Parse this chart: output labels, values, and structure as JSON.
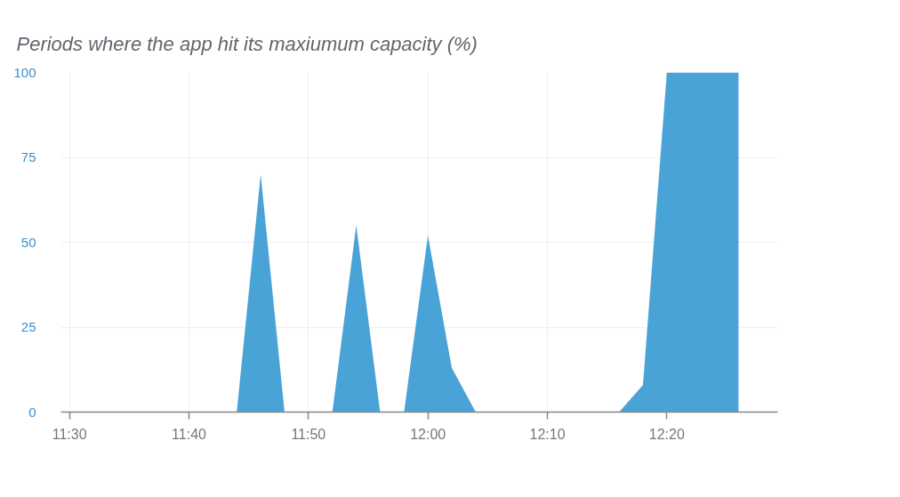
{
  "chart_data": {
    "type": "area",
    "title": "Periods where the app hit its maxiumum capacity (%)",
    "x": [
      11.5,
      11.5333,
      11.5667,
      11.6,
      11.6333,
      11.6667,
      11.7,
      11.7333,
      11.7667,
      11.8,
      11.8333,
      11.8667,
      11.9,
      11.9333,
      11.9667,
      12,
      12.0333,
      12.0667,
      12.1,
      12.1333,
      12.1667,
      12.2,
      12.2333,
      12.2667,
      12.3,
      12.3333,
      12.3667,
      12.4,
      12.4333
    ],
    "series": [
      {
        "color": "#4aa3d7",
        "values": [
          0,
          0,
          0,
          0,
          0,
          0,
          0,
          0,
          70,
          0,
          0,
          0,
          55,
          0,
          0,
          52,
          13,
          0,
          0,
          0,
          0,
          0,
          0,
          0,
          8,
          100,
          100,
          100,
          100
        ]
      }
    ],
    "xlim": [
      11.488,
      12.488
    ],
    "ylim": [
      0,
      100
    ],
    "xticks": [
      {
        "value": 11.5,
        "label": "11:30"
      },
      {
        "value": 11.6667,
        "label": "11:40"
      },
      {
        "value": 11.8333,
        "label": "11:50"
      },
      {
        "value": 12,
        "label": "12:00"
      },
      {
        "value": 12.1667,
        "label": "12:10"
      },
      {
        "value": 12.3333,
        "label": "12:20"
      }
    ],
    "yticks": [
      0,
      25,
      50,
      75,
      100
    ],
    "grid": true
  }
}
